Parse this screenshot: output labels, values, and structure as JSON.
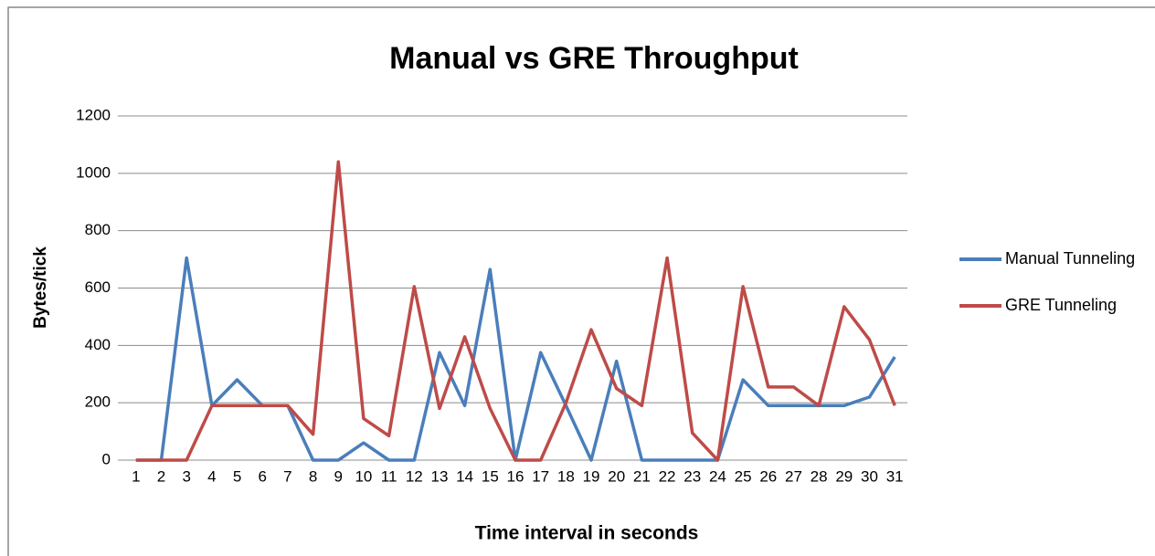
{
  "chart_data": {
    "type": "line",
    "title": "Manual vs GRE Throughput",
    "x_label": "Time interval in seconds",
    "y_label": "Bytes/tick",
    "categories": [
      "1",
      "2",
      "3",
      "4",
      "5",
      "6",
      "7",
      "8",
      "9",
      "10",
      "11",
      "12",
      "13",
      "14",
      "15",
      "16",
      "17",
      "18",
      "19",
      "20",
      "21",
      "22",
      "23",
      "24",
      "25",
      "26",
      "27",
      "28",
      "29",
      "30",
      "31"
    ],
    "series": [
      {
        "name": "Manual Tunneling",
        "color": "#4a7ebb",
        "values": [
          0,
          0,
          705,
          190,
          280,
          190,
          190,
          0,
          0,
          60,
          0,
          0,
          375,
          190,
          665,
          0,
          375,
          190,
          0,
          345,
          0,
          0,
          0,
          0,
          280,
          190,
          190,
          190,
          190,
          220,
          360
        ]
      },
      {
        "name": "GRE Tunneling",
        "color": "#be4b48",
        "values": [
          0,
          0,
          0,
          190,
          190,
          190,
          190,
          90,
          1040,
          145,
          85,
          605,
          180,
          430,
          180,
          0,
          0,
          200,
          455,
          250,
          190,
          705,
          95,
          0,
          605,
          255,
          255,
          190,
          535,
          420,
          190
        ]
      }
    ],
    "ylim": [
      0,
      1200
    ],
    "yticks": [
      0,
      200,
      400,
      600,
      800,
      1000,
      1200
    ],
    "grid": true,
    "legend": "right"
  }
}
